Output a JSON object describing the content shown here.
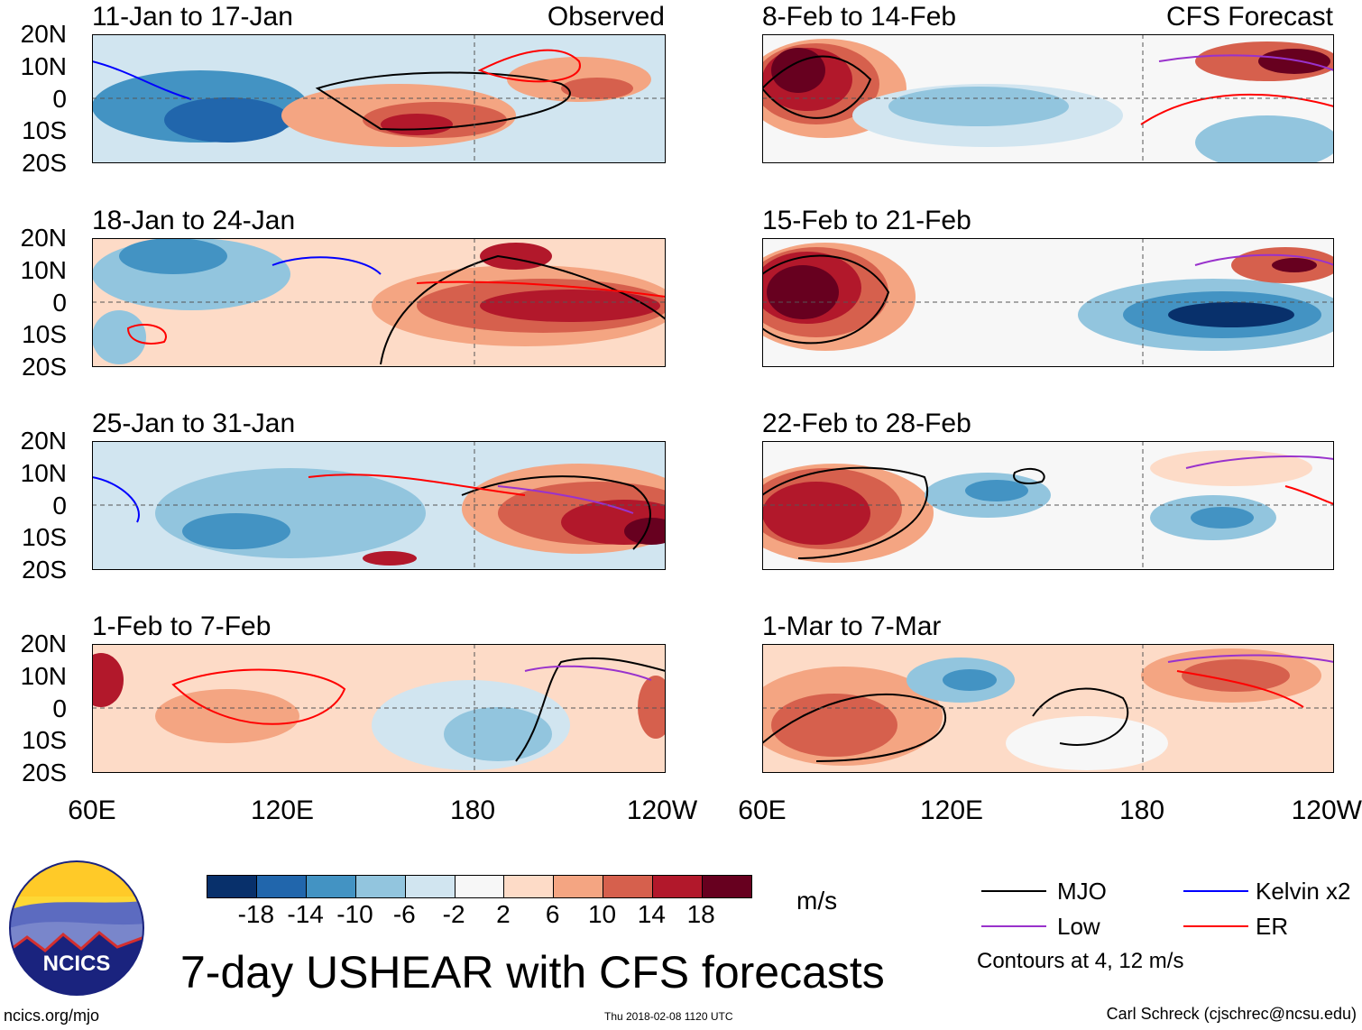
{
  "figure": {
    "title": "7-day USHEAR with CFS forecasts",
    "units": "m/s",
    "contour_note": "Contours at 4, 12 m/s",
    "left_tag": "Observed",
    "right_tag": "CFS Forecast",
    "url": "ncics.org/mjo",
    "timestamp": "Thu 2018-02-08 1120 UTC",
    "credit": "Carl Schreck (cjschrec@ncsu.edu)",
    "logo_text": "NCICS"
  },
  "axes": {
    "y_ticks": [
      "20N",
      "10N",
      "0",
      "10S",
      "20S"
    ],
    "x_ticks": [
      "60E",
      "120E",
      "180",
      "120W"
    ]
  },
  "panels_left": [
    {
      "title": "11-Jan to 17-Jan"
    },
    {
      "title": "18-Jan to 24-Jan"
    },
    {
      "title": "25-Jan to 31-Jan"
    },
    {
      "title": "1-Feb to 7-Feb"
    }
  ],
  "panels_right": [
    {
      "title": "8-Feb to 14-Feb"
    },
    {
      "title": "15-Feb to 21-Feb"
    },
    {
      "title": "22-Feb to 28-Feb"
    },
    {
      "title": "1-Mar to 7-Mar"
    }
  ],
  "colorbar": {
    "labels": [
      "-18",
      "-14",
      "-10",
      "-6",
      "-2",
      "2",
      "6",
      "10",
      "14",
      "18"
    ],
    "colors": [
      "#08306b",
      "#2166ac",
      "#4393c3",
      "#92c5de",
      "#d1e5f0",
      "#f7f7f7",
      "#fddbc7",
      "#f4a582",
      "#d6604d",
      "#b2182b",
      "#67001f"
    ]
  },
  "legend": [
    {
      "label": "MJO",
      "color": "#000000"
    },
    {
      "label": "Kelvin x2",
      "color": "#0000ff"
    },
    {
      "label": "Low",
      "color": "#9932cc"
    },
    {
      "label": "ER",
      "color": "#ff0000"
    }
  ]
}
